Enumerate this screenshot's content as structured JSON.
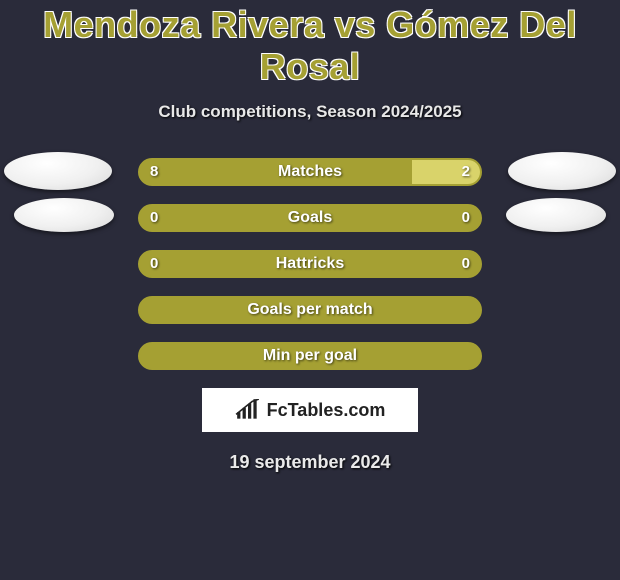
{
  "title": "Mendoza Rivera vs Gómez Del Rosal",
  "subtitle": "Club competitions, Season 2024/2025",
  "date": "19 september 2024",
  "branding": {
    "text": "FcTables.com"
  },
  "colors": {
    "background": "#2a2b3a",
    "accent": "#a5a033",
    "accent_light": "#d9d36a",
    "text": "#ffffff"
  },
  "rows": [
    {
      "label": "Matches",
      "left_value": "8",
      "right_value": "2",
      "left_pct": 80,
      "right_pct": 20,
      "show_values": true,
      "avatars": "large"
    },
    {
      "label": "Goals",
      "left_value": "0",
      "right_value": "0",
      "left_pct": 100,
      "right_pct": 0,
      "show_values": true,
      "avatars": "small"
    },
    {
      "label": "Hattricks",
      "left_value": "0",
      "right_value": "0",
      "left_pct": 100,
      "right_pct": 0,
      "show_values": true,
      "avatars": "none"
    },
    {
      "label": "Goals per match",
      "left_value": "",
      "right_value": "",
      "left_pct": 100,
      "right_pct": 0,
      "show_values": false,
      "avatars": "none"
    },
    {
      "label": "Min per goal",
      "left_value": "",
      "right_value": "",
      "left_pct": 100,
      "right_pct": 0,
      "show_values": false,
      "avatars": "none"
    }
  ]
}
